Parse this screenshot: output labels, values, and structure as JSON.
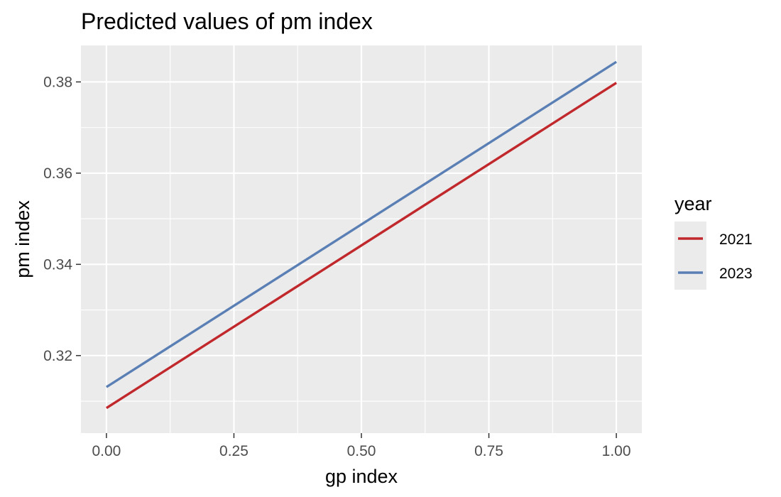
{
  "chart_data": {
    "type": "line",
    "title": "Predicted values of pm index",
    "xlabel": "gp index",
    "ylabel": "pm index",
    "xlim": [
      -0.05,
      1.05
    ],
    "ylim": [
      0.303,
      0.388
    ],
    "x_ticks": [
      0.0,
      0.25,
      0.5,
      0.75,
      1.0
    ],
    "x_tick_labels": [
      "0.00",
      "0.25",
      "0.50",
      "0.75",
      "1.00"
    ],
    "y_ticks": [
      0.32,
      0.34,
      0.36,
      0.38
    ],
    "y_tick_labels": [
      "0.32",
      "0.34",
      "0.36",
      "0.38"
    ],
    "grid": true,
    "legend": {
      "title": "year",
      "placement": "right"
    },
    "series": [
      {
        "name": "2021",
        "color": "#c0282c",
        "x": [
          0.0,
          1.0
        ],
        "y": [
          0.3085,
          0.3798
        ]
      },
      {
        "name": "2023",
        "color": "#5a7fb5",
        "x": [
          0.0,
          1.0
        ],
        "y": [
          0.3131,
          0.3844
        ]
      }
    ]
  }
}
